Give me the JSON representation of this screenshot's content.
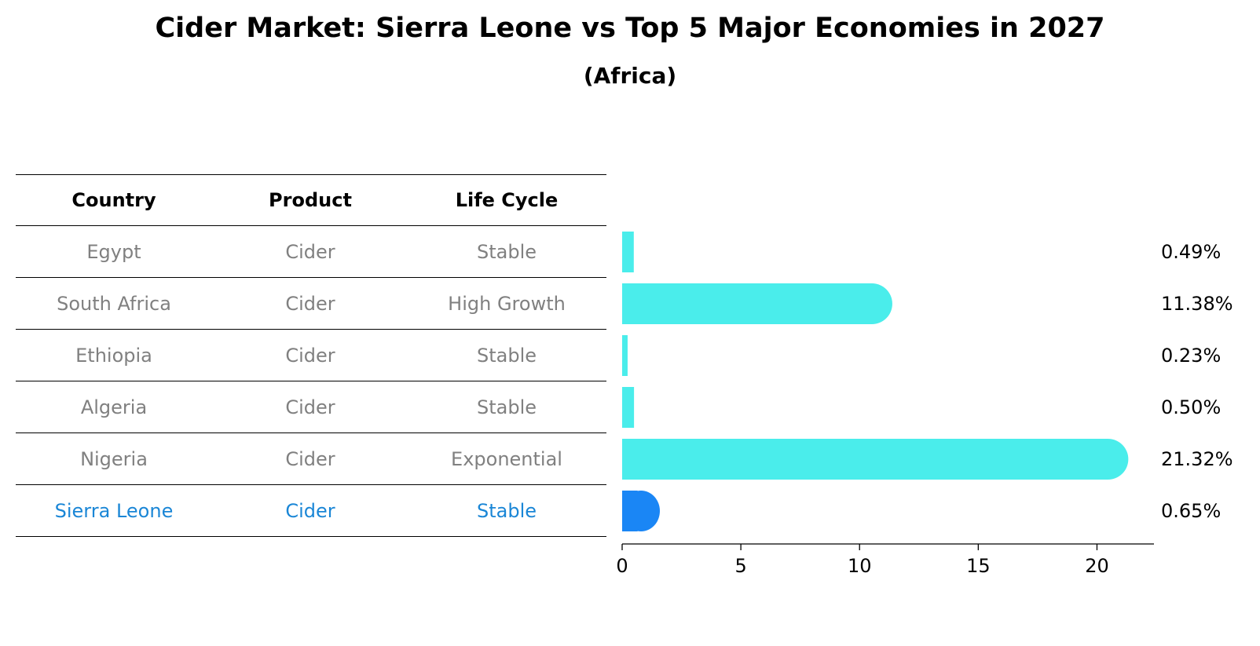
{
  "title": "Cider Market: Sierra Leone vs Top 5 Major Economies in 2027",
  "subtitle": "(Africa)",
  "table": {
    "headers": [
      "Country",
      "Product",
      "Life Cycle"
    ],
    "rows": [
      {
        "country": "Egypt",
        "product": "Cider",
        "life_cycle": "Stable"
      },
      {
        "country": "South Africa",
        "product": "Cider",
        "life_cycle": "High Growth"
      },
      {
        "country": "Ethiopia",
        "product": "Cider",
        "life_cycle": "Stable"
      },
      {
        "country": "Algeria",
        "product": "Cider",
        "life_cycle": "Stable"
      },
      {
        "country": "Nigeria",
        "product": "Cider",
        "life_cycle": "Exponential"
      },
      {
        "country": "Sierra Leone",
        "product": "Cider",
        "life_cycle": "Stable"
      }
    ]
  },
  "chart_data": {
    "type": "bar",
    "orientation": "horizontal",
    "categories": [
      "Egypt",
      "South Africa",
      "Ethiopia",
      "Algeria",
      "Nigeria",
      "Sierra Leone"
    ],
    "values": [
      0.49,
      11.38,
      0.23,
      0.5,
      21.32,
      0.65
    ],
    "value_labels": [
      "0.49%",
      "11.38%",
      "0.23%",
      "0.50%",
      "21.32%",
      "0.65%"
    ],
    "xlim": [
      0,
      22.4
    ],
    "x_ticks": [
      0,
      5,
      10,
      15,
      20
    ],
    "x_tick_labels": [
      "0",
      "5",
      "10",
      "15",
      "20"
    ],
    "highlight": "Sierra Leone",
    "grid": false,
    "colors": {
      "bar": "#4aedeb",
      "highlight_bar": "#1a86f5",
      "highlight_text": "#1a86d6",
      "text_muted": "#808080",
      "text": "#000000"
    }
  }
}
